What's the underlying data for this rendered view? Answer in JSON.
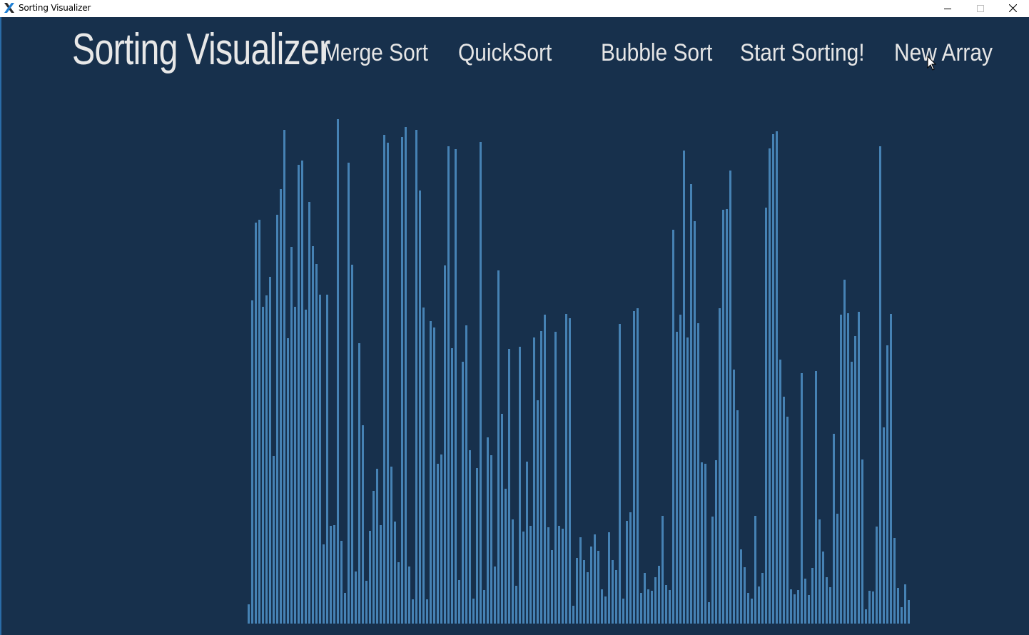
{
  "window": {
    "title": "Sorting Visualizer",
    "icons": {
      "app": "app-x-icon",
      "minimize": "minimize-icon",
      "maximize": "maximize-icon",
      "close": "close-icon"
    }
  },
  "header": {
    "brand": "Sorting Visualizer",
    "nav": {
      "merge_sort": "Merge Sort",
      "quick_sort": "QuickSort",
      "bubble_sort": "Bubble Sort",
      "start_sorting": "Start Sorting!",
      "new_array": "New Array"
    }
  },
  "colors": {
    "background": "#17304c",
    "bar": "#4682b4",
    "nav_text": "#e6e6e6"
  },
  "array_values": [
    27,
    453,
    562,
    566,
    444,
    460,
    486,
    235,
    573,
    609,
    692,
    400,
    528,
    444,
    643,
    649,
    440,
    591,
    529,
    504,
    461,
    111,
    461,
    137,
    138,
    707,
    116,
    43,
    646,
    503,
    73,
    393,
    278,
    60,
    130,
    186,
    217,
    138,
    685,
    674,
    220,
    143,
    86,
    682,
    696,
    80,
    34,
    692,
    607,
    443,
    34,
    424,
    415,
    224,
    237,
    502,
    669,
    386,
    665,
    61,
    367,
    418,
    243,
    35,
    218,
    675,
    47,
    261,
    236,
    80,
    495,
    294,
    189,
    385,
    146,
    53,
    388,
    129,
    227,
    137,
    401,
    313,
    410,
    433,
    135,
    103,
    409,
    137,
    133,
    434,
    428,
    25,
    92,
    121,
    89,
    72,
    108,
    125,
    102,
    48,
    38,
    128,
    89,
    75,
    420,
    35,
    144,
    156,
    438,
    442,
    43,
    71,
    48,
    46,
    65,
    81,
    151,
    54,
    47,
    552,
    409,
    433,
    663,
    401,
    616,
    564,
    421,
    226,
    224,
    30,
    150,
    229,
    442,
    580,
    581,
    635,
    356,
    299,
    104,
    79,
    43,
    35,
    151,
    52,
    71,
    583,
    666,
    686,
    690,
    370,
    318,
    290,
    48,
    41,
    47,
    351,
    63,
    40,
    78,
    354,
    146,
    101,
    65,
    51,
    266,
    154,
    433,
    482,
    435,
    367,
    403,
    437,
    230,
    20,
    46,
    45,
    136,
    669,
    275,
    390,
    434,
    120,
    50,
    23,
    55,
    33
  ]
}
